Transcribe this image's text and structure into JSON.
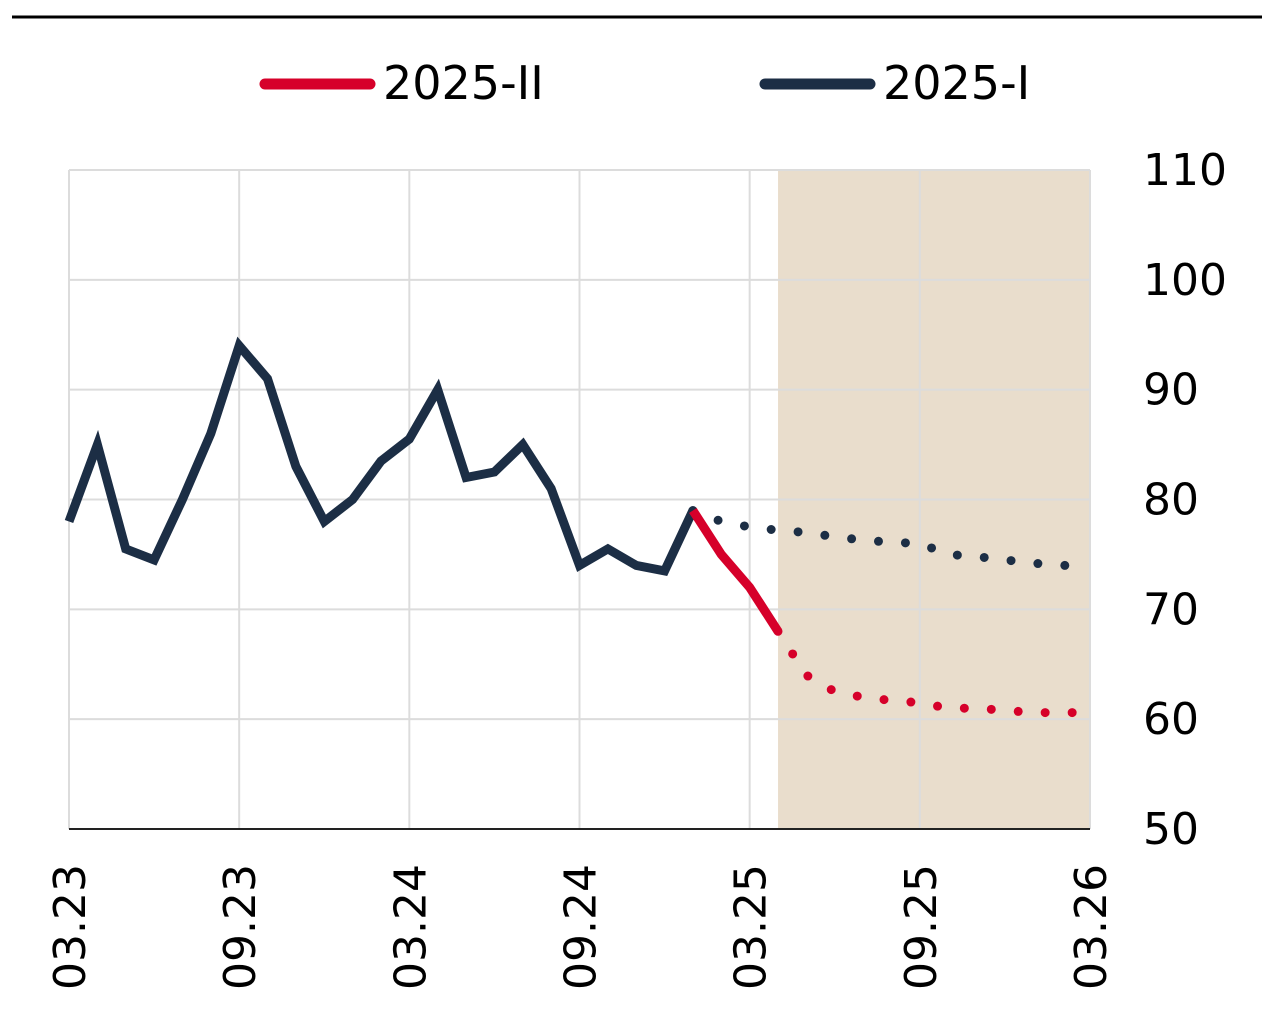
{
  "chart_data": {
    "type": "line",
    "x_ticks": [
      "03.23",
      "09.23",
      "03.24",
      "09.24",
      "03.25",
      "09.25",
      "03.26"
    ],
    "y_ticks": [
      50,
      60,
      70,
      80,
      90,
      100,
      110
    ],
    "ylim": [
      50,
      110
    ],
    "grid": true,
    "legend_position": "top",
    "forecast_shading_start": "04.25",
    "series": [
      {
        "name": "2025-II",
        "color": "#d6002a",
        "actual": [
          {
            "x": "01.25",
            "y": 79
          },
          {
            "x": "02.25",
            "y": 75
          },
          {
            "x": "03.25",
            "y": 72
          },
          {
            "x": "04.25",
            "y": 68
          }
        ],
        "forecast": [
          {
            "x": "04.25",
            "y": 68
          },
          {
            "x": "05.25",
            "y": 64
          },
          {
            "x": "06.25",
            "y": 62.5
          },
          {
            "x": "07.25",
            "y": 62
          },
          {
            "x": "08.25",
            "y": 61.7
          },
          {
            "x": "09.25",
            "y": 61.5
          },
          {
            "x": "10.25",
            "y": 61
          },
          {
            "x": "11.25",
            "y": 61
          },
          {
            "x": "12.25",
            "y": 60.8
          },
          {
            "x": "01.26",
            "y": 60.6
          },
          {
            "x": "02.26",
            "y": 60.6
          },
          {
            "x": "03.26",
            "y": 60.6
          }
        ]
      },
      {
        "name": "2025-I",
        "color": "#1c2e45",
        "actual": [
          {
            "x": "03.23",
            "y": 78
          },
          {
            "x": "04.23",
            "y": 85
          },
          {
            "x": "05.23",
            "y": 75.5
          },
          {
            "x": "06.23",
            "y": 74.5
          },
          {
            "x": "07.23",
            "y": 80
          },
          {
            "x": "08.23",
            "y": 86
          },
          {
            "x": "09.23",
            "y": 94
          },
          {
            "x": "10.23",
            "y": 91
          },
          {
            "x": "11.23",
            "y": 83
          },
          {
            "x": "12.23",
            "y": 78
          },
          {
            "x": "01.24",
            "y": 80
          },
          {
            "x": "02.24",
            "y": 83.5
          },
          {
            "x": "03.24",
            "y": 85.5
          },
          {
            "x": "04.24",
            "y": 90
          },
          {
            "x": "05.24",
            "y": 82
          },
          {
            "x": "06.24",
            "y": 82.5
          },
          {
            "x": "07.24",
            "y": 85
          },
          {
            "x": "08.24",
            "y": 81
          },
          {
            "x": "09.24",
            "y": 74
          },
          {
            "x": "10.24",
            "y": 75.5
          },
          {
            "x": "11.24",
            "y": 74
          },
          {
            "x": "12.24",
            "y": 73.5
          },
          {
            "x": "01.25",
            "y": 79
          }
        ],
        "forecast": [
          {
            "x": "01.25",
            "y": 79
          },
          {
            "x": "02.25",
            "y": 78
          },
          {
            "x": "03.25",
            "y": 77.5
          },
          {
            "x": "04.25",
            "y": 77.2
          },
          {
            "x": "05.25",
            "y": 77
          },
          {
            "x": "06.25",
            "y": 76.6
          },
          {
            "x": "07.25",
            "y": 76.3
          },
          {
            "x": "08.25",
            "y": 76.1
          },
          {
            "x": "09.25",
            "y": 76
          },
          {
            "x": "10.25",
            "y": 75
          },
          {
            "x": "11.25",
            "y": 74.8
          },
          {
            "x": "12.25",
            "y": 74.5
          },
          {
            "x": "01.26",
            "y": 74.2
          },
          {
            "x": "02.26",
            "y": 74
          },
          {
            "x": "03.26",
            "y": 74
          }
        ]
      }
    ]
  }
}
